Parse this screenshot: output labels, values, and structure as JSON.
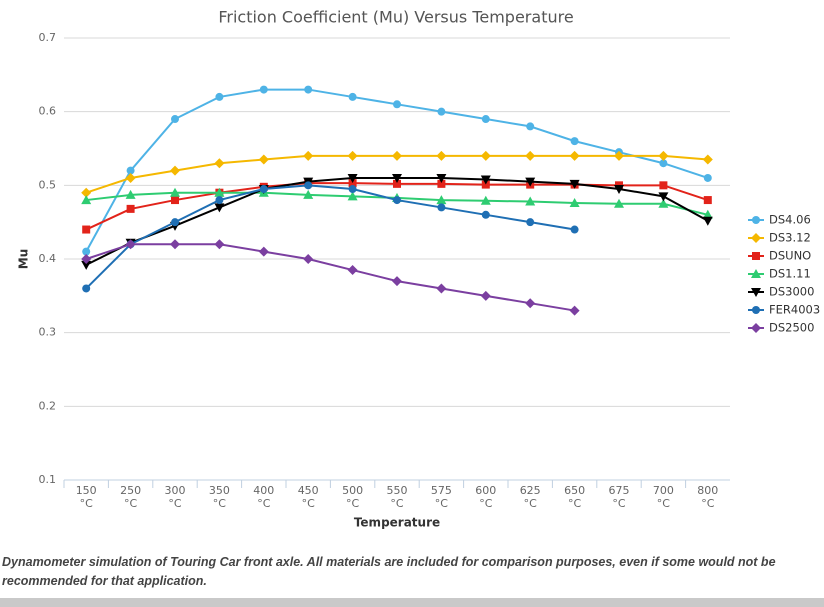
{
  "chart_data": {
    "type": "line",
    "title": "Friction Coefficient (Mu) Versus Temperature",
    "x_label": "Temperature",
    "y_label": "Mu",
    "categories": [
      "150\n°C",
      "250\n°C",
      "300\n°C",
      "350\n°C",
      "400\n°C",
      "450\n°C",
      "500\n°C",
      "550\n°C",
      "575\n°C",
      "600\n°C",
      "625\n°C",
      "650\n°C",
      "675\n°C",
      "700\n°C",
      "800\n°C"
    ],
    "ylim": [
      0.1,
      0.7
    ],
    "yticks": [
      0.1,
      0.2,
      0.3,
      0.4,
      0.5,
      0.6,
      0.7
    ],
    "grid": true,
    "legend": "right",
    "series": [
      {
        "name": "DS4.06",
        "color": "#4eb3e6",
        "marker": "circle",
        "values": [
          0.41,
          0.52,
          0.59,
          0.62,
          0.63,
          0.63,
          0.62,
          0.61,
          0.6,
          0.59,
          0.58,
          0.56,
          0.545,
          0.53,
          0.51
        ]
      },
      {
        "name": "DS3.12",
        "color": "#f5b800",
        "marker": "diamond",
        "values": [
          0.49,
          0.51,
          0.52,
          0.53,
          0.535,
          0.54,
          0.54,
          0.54,
          0.54,
          0.54,
          0.54,
          0.54,
          0.54,
          0.54,
          0.535
        ]
      },
      {
        "name": "DSUNO",
        "color": "#e2231a",
        "marker": "square",
        "values": [
          0.44,
          0.468,
          0.48,
          0.49,
          0.498,
          0.503,
          0.503,
          0.502,
          0.502,
          0.501,
          0.501,
          0.501,
          0.5,
          0.5,
          0.48
        ]
      },
      {
        "name": "DS1.11",
        "color": "#2ecc71",
        "marker": "triangle",
        "values": [
          0.48,
          0.487,
          0.49,
          0.49,
          0.49,
          0.487,
          0.485,
          0.483,
          0.48,
          0.479,
          0.478,
          0.476,
          0.475,
          0.475,
          0.46
        ]
      },
      {
        "name": "DS3000",
        "color": "#000000",
        "marker": "triangle-down",
        "values": [
          0.392,
          0.422,
          0.445,
          0.47,
          0.495,
          0.505,
          0.51,
          0.51,
          0.51,
          0.508,
          0.505,
          0.502,
          0.495,
          0.485,
          0.452
        ]
      },
      {
        "name": "FER4003",
        "color": "#1f6fb4",
        "marker": "circle",
        "values": [
          0.36,
          0.42,
          0.45,
          0.48,
          0.495,
          0.5,
          0.495,
          0.48,
          0.47,
          0.46,
          0.45,
          0.44,
          null,
          null,
          null
        ]
      },
      {
        "name": "DS2500",
        "color": "#7b3fa0",
        "marker": "diamond",
        "values": [
          0.4,
          0.42,
          0.42,
          0.42,
          0.41,
          0.4,
          0.385,
          0.37,
          0.36,
          0.35,
          0.34,
          0.33,
          null,
          null,
          null
        ]
      }
    ]
  },
  "caption": "Dynamometer simulation of Touring Car front axle. All materials are included for comparison purposes, even if some would not be recommended for that application."
}
